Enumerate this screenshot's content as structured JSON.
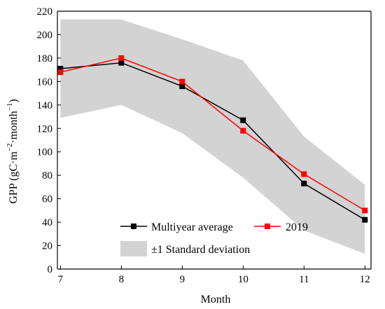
{
  "chart_data": {
    "type": "line",
    "xlabel": "Month",
    "ylabel_main": "GPP (gC·m",
    "ylabel_exp1": "−2",
    "ylabel_mid": "·month",
    "ylabel_exp2": "−1",
    "ylabel_end": ")",
    "x": [
      7,
      8,
      9,
      10,
      11,
      12
    ],
    "xlim": [
      6.95,
      12.1
    ],
    "ylim": [
      0,
      220
    ],
    "xticks": [
      "7",
      "8",
      "9",
      "10",
      "11",
      "12"
    ],
    "yticks": [
      "0",
      "20",
      "40",
      "60",
      "80",
      "100",
      "120",
      "140",
      "160",
      "180",
      "200",
      "220"
    ],
    "series": [
      {
        "name": "Multiyear average",
        "values": [
          171,
          176,
          156,
          127,
          73,
          42
        ],
        "color": "#000000",
        "marker": "square"
      },
      {
        "name": "2019",
        "values": [
          168,
          180,
          160,
          118,
          81,
          50
        ],
        "color": "#ff0000",
        "marker": "square"
      }
    ],
    "band": {
      "name": "±1 Standard deviation",
      "upper": [
        213,
        213,
        196,
        178,
        113,
        72
      ],
      "lower": [
        129,
        140,
        116,
        78,
        33,
        13
      ],
      "color": "#d3d3d3"
    },
    "legend_position": "bottom-left",
    "grid": false
  }
}
